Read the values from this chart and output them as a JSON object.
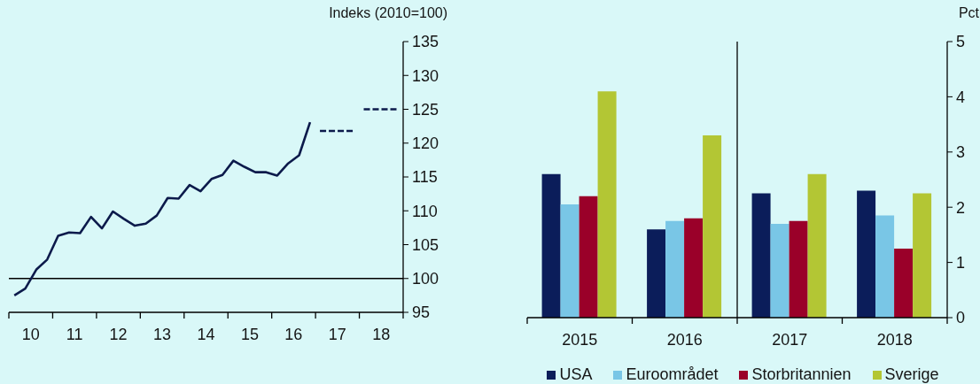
{
  "chart_data": [
    {
      "type": "line",
      "ylabel": "Indeks (2010=100)",
      "xlim": [
        9.5,
        18.5
      ],
      "xticks": [
        {
          "value": 9.5,
          "label": null
        },
        10,
        {
          "value": 10.5,
          "label": null
        },
        11,
        {
          "value": 11.5,
          "label": null
        },
        12,
        {
          "value": 12.5,
          "label": null
        },
        13,
        {
          "value": 13.5,
          "label": null
        },
        14,
        {
          "value": 14.5,
          "label": null
        },
        15,
        {
          "value": 15.5,
          "label": null
        },
        16,
        {
          "value": 16.5,
          "label": null
        },
        17,
        {
          "value": 17.5,
          "label": null
        },
        18,
        {
          "value": 18.5,
          "label": null
        }
      ],
      "ylim": [
        95,
        135
      ],
      "yticks": [
        95,
        100,
        105,
        110,
        115,
        120,
        125,
        130,
        135
      ],
      "marker": "none",
      "ref_lines": [
        {
          "axis": "y",
          "value": 100,
          "color": "#000000"
        }
      ],
      "series": [
        {
          "color": "#0c1a4b",
          "x": [
            9.625,
            9.875,
            10.125,
            10.375,
            10.625,
            10.875,
            11.125,
            11.375,
            11.625,
            11.875,
            12.125,
            12.375,
            12.625,
            12.875,
            13.125,
            13.375,
            13.625,
            13.875,
            14.125,
            14.375,
            14.625,
            14.875,
            15.125,
            15.375,
            15.625,
            15.875,
            16.125,
            16.375
          ],
          "values": [
            97.5,
            98.5,
            101.3,
            102.8,
            106.3,
            106.8,
            106.7,
            109.1,
            107.4,
            109.9,
            108.8,
            107.8,
            108.1,
            109.3,
            111.9,
            111.8,
            113.8,
            112.9,
            114.7,
            115.3,
            117.4,
            116.5,
            115.7,
            115.7,
            115.2,
            117.0,
            118.2,
            123.1
          ]
        },
        {
          "color": "#0c1a4b",
          "line_style": "dashed",
          "x": [
            16.6,
            17.4
          ],
          "values": [
            121.8,
            121.8
          ]
        },
        {
          "color": "#0c1a4b",
          "line_style": "dashed",
          "x": [
            17.6,
            18.4
          ],
          "values": [
            125,
            125
          ]
        }
      ]
    },
    {
      "type": "bar",
      "ylabel": "Pct",
      "x": [
        2015,
        2016,
        2017,
        2018
      ],
      "xlim": [
        2014.5,
        2018.5
      ],
      "xticks": [
        {
          "value": 2014.5,
          "label": null
        },
        2015,
        {
          "value": 2015.5,
          "label": null
        },
        2016,
        {
          "value": 2016.5,
          "label": null
        },
        2017,
        {
          "value": 2017.5,
          "label": null
        },
        2018,
        {
          "value": 2018.5,
          "label": null
        }
      ],
      "ylim": [
        0,
        5
      ],
      "yticks": [
        0,
        1,
        2,
        3,
        4,
        5
      ],
      "legend": "bottom",
      "ref_lines": [
        {
          "axis": "x",
          "value": 2016.5,
          "color": "#000000"
        }
      ],
      "series": [
        {
          "name": "USA",
          "color": "#0b1d5a",
          "values": [
            2.6,
            1.6,
            2.25,
            2.3
          ]
        },
        {
          "name": "Euroområdet",
          "color": "#79c6e6",
          "values": [
            2.05,
            1.75,
            1.7,
            1.85
          ]
        },
        {
          "name": "Storbritannien",
          "color": "#9a0029",
          "values": [
            2.2,
            1.8,
            1.75,
            1.25
          ]
        },
        {
          "name": "Sverige",
          "color": "#b3c634",
          "values": [
            4.1,
            3.3,
            2.6,
            2.25
          ]
        }
      ]
    }
  ]
}
